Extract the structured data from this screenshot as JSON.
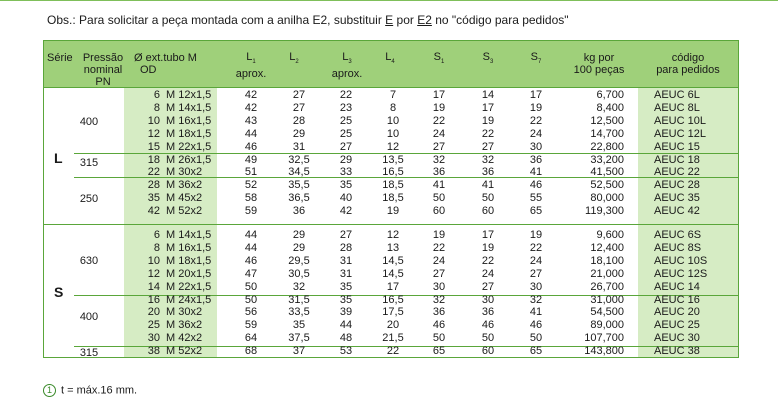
{
  "note": {
    "prefix": "Obs.:   Para solicitar a peça montada com a anilha E2, substituir ",
    "u1": "E",
    "mid": " por ",
    "u2": "E2",
    "suffix": " no \"código para pedidos\""
  },
  "headers": {
    "serie": "Série",
    "pressao1": "Pressão",
    "pressao2": "nominal PN",
    "od1": "Ø ext.tubo  M",
    "od2": "OD",
    "l1a": "L",
    "l1s": "1",
    "l1b": "aprox.",
    "l2": "L",
    "l2s": "2",
    "l3a": "L",
    "l3s": "3",
    "l3b": "aprox.",
    "l4": "L",
    "l4s": "4",
    "s1": "S",
    "s1s": "1",
    "s3": "S",
    "s3s": "3",
    "s7": "S",
    "s7s": "7",
    "kg1": "kg por",
    "kg2": "100 peças",
    "cod1": "código",
    "cod2": "para pedidos"
  },
  "series_labels": {
    "L": "L",
    "S": "S"
  },
  "pressure_labels": [
    "400",
    "315",
    "250",
    "630",
    "400",
    "315"
  ],
  "rows": [
    {
      "od": "6",
      "m": "M 12x1,5",
      "l1": "42",
      "l2": "27",
      "l3": "22",
      "l4": "7",
      "s1": "17",
      "s3": "14",
      "s7": "17",
      "kg": "6,700",
      "cod": "AEUC 6L"
    },
    {
      "od": "8",
      "m": "M 14x1,5",
      "l1": "42",
      "l2": "27",
      "l3": "23",
      "l4": "8",
      "s1": "19",
      "s3": "17",
      "s7": "19",
      "kg": "8,400",
      "cod": "AEUC 8L"
    },
    {
      "od": "10",
      "m": "M 16x1,5",
      "l1": "43",
      "l2": "28",
      "l3": "25",
      "l4": "10",
      "s1": "22",
      "s3": "19",
      "s7": "22",
      "kg": "12,500",
      "cod": "AEUC 10L"
    },
    {
      "od": "12",
      "m": "M 18x1,5",
      "l1": "44",
      "l2": "29",
      "l3": "25",
      "l4": "10",
      "s1": "24",
      "s3": "22",
      "s7": "24",
      "kg": "14,700",
      "cod": "AEUC 12L"
    },
    {
      "od": "15",
      "m": "M 22x1,5",
      "l1": "46",
      "l2": "31",
      "l3": "27",
      "l4": "12",
      "s1": "27",
      "s3": "27",
      "s7": "30",
      "kg": "22,800",
      "cod": "AEUC 15"
    },
    {
      "od": "18",
      "m": "M 26x1,5",
      "l1": "49",
      "l2": "32,5",
      "l3": "29",
      "l4": "13,5",
      "s1": "32",
      "s3": "32",
      "s7": "36",
      "kg": "33,200",
      "cod": "AEUC 18"
    },
    {
      "od": "22",
      "m": "M 30x2",
      "l1": "51",
      "l2": "34,5",
      "l3": "33",
      "l4": "16,5",
      "s1": "36",
      "s3": "36",
      "s7": "41",
      "kg": "41,500",
      "cod": "AEUC 22"
    },
    {
      "od": "28",
      "m": "M 36x2",
      "l1": "52",
      "l2": "35,5",
      "l3": "35",
      "l4": "18,5",
      "s1": "41",
      "s3": "41",
      "s7": "46",
      "kg": "52,500",
      "cod": "AEUC 28"
    },
    {
      "od": "35",
      "m": "M 45x2",
      "l1": "58",
      "l2": "36,5",
      "l3": "40",
      "l4": "18,5",
      "s1": "50",
      "s3": "50",
      "s7": "55",
      "kg": "80,000",
      "cod": "AEUC 35"
    },
    {
      "od": "42",
      "m": "M 52x2",
      "l1": "59",
      "l2": "36",
      "l3": "42",
      "l4": "19",
      "s1": "60",
      "s3": "60",
      "s7": "65",
      "kg": "119,300",
      "cod": "AEUC 42"
    },
    {
      "od": "6",
      "m": "M 14x1,5",
      "l1": "44",
      "l2": "29",
      "l3": "27",
      "l4": "12",
      "s1": "19",
      "s3": "17",
      "s7": "19",
      "kg": "9,600",
      "cod": "AEUC 6S"
    },
    {
      "od": "8",
      "m": "M 16x1,5",
      "l1": "44",
      "l2": "29",
      "l3": "28",
      "l4": "13",
      "s1": "22",
      "s3": "19",
      "s7": "22",
      "kg": "12,400",
      "cod": "AEUC 8S"
    },
    {
      "od": "10",
      "m": "M 18x1,5",
      "l1": "46",
      "l2": "29,5",
      "l3": "31",
      "l4": "14,5",
      "s1": "24",
      "s3": "22",
      "s7": "24",
      "kg": "18,100",
      "cod": "AEUC 10S"
    },
    {
      "od": "12",
      "m": "M 20x1,5",
      "l1": "47",
      "l2": "30,5",
      "l3": "31",
      "l4": "14,5",
      "s1": "27",
      "s3": "24",
      "s7": "27",
      "kg": "21,000",
      "cod": "AEUC 12S"
    },
    {
      "od": "14",
      "m": "M 22x1,5",
      "l1": "50",
      "l2": "32",
      "l3": "35",
      "l4": "17",
      "s1": "30",
      "s3": "27",
      "s7": "30",
      "kg": "26,700",
      "cod": "AEUC 14"
    },
    {
      "od": "16",
      "m": "M 24x1,5",
      "l1": "50",
      "l2": "31,5",
      "l3": "35",
      "l4": "16,5",
      "s1": "32",
      "s3": "30",
      "s7": "32",
      "kg": "31,000",
      "cod": "AEUC 16"
    },
    {
      "od": "20",
      "m": "M 30x2",
      "l1": "56",
      "l2": "33,5",
      "l3": "39",
      "l4": "17,5",
      "s1": "36",
      "s3": "36",
      "s7": "41",
      "kg": "54,500",
      "cod": "AEUC 20"
    },
    {
      "od": "25",
      "m": "M 36x2",
      "l1": "59",
      "l2": "35",
      "l3": "44",
      "l4": "20",
      "s1": "46",
      "s3": "46",
      "s7": "46",
      "kg": "89,000",
      "cod": "AEUC 25"
    },
    {
      "od": "30",
      "m": "M 42x2",
      "l1": "64",
      "l2": "37,5",
      "l3": "48",
      "l4": "21,5",
      "s1": "50",
      "s3": "50",
      "s7": "50",
      "kg": "107,700",
      "cod": "AEUC 30"
    },
    {
      "od": "38",
      "m": "M 52x2",
      "l1": "68",
      "l2": "37",
      "l3": "53",
      "l4": "22",
      "s1": "65",
      "s3": "60",
      "s7": "65",
      "kg": "143,800",
      "cod": "AEUC 38"
    }
  ],
  "footnote": {
    "marker": "1",
    "text": "t = máx.16 mm."
  }
}
